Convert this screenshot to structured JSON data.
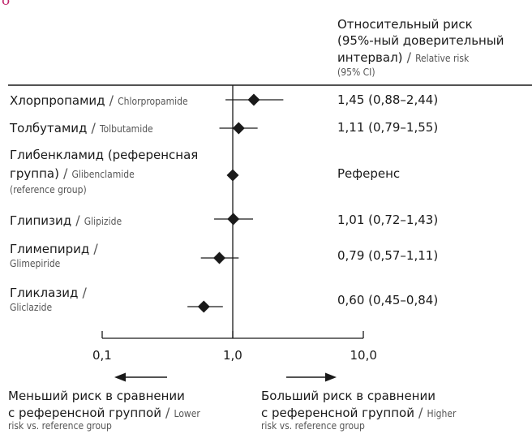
{
  "top_fragment": "ȯ",
  "column_header": {
    "ru_lines": [
      "Относительный риск",
      "(95%-ный доверительный",
      "интервал)"
    ],
    "separator": " / ",
    "en_line1": "Relative risk",
    "en_line2": "(95% CI)"
  },
  "rows": [
    {
      "ru": "Хлорпропамид",
      "en": "Chlorpropamide",
      "estimate": "1,45 (0,88–2,44)"
    },
    {
      "ru": "Толбутамид",
      "en": "Tolbutamide",
      "estimate": "1,11 (0,79–1,55)"
    },
    {
      "ru_line1": "Глибенкламид (референсная",
      "ru_line2": "группа)",
      "en_line1": "Glibenclamide",
      "en_line2": "(reference group)",
      "estimate": "Референс"
    },
    {
      "ru": "Глипизид",
      "en": "Glipizide",
      "estimate": "1,01 (0,72–1,43)"
    },
    {
      "ru": "Глимепирид",
      "en": "Glimepiride",
      "estimate": "0,79 (0,57–1,11)"
    },
    {
      "ru": "Гликлазид",
      "en": "Gliclazide",
      "estimate": "0,60 (0,45–0,84)"
    }
  ],
  "axis_ticks": [
    "0,1",
    "1,0",
    "10,0"
  ],
  "footer": {
    "left": {
      "ru_line1": "Меньший риск в сравнении",
      "ru_line2": "с референсной группой",
      "en_line2": "Lower",
      "en_line3": "risk vs. reference group"
    },
    "right": {
      "ru_line1": "Больший риск в сравнении",
      "ru_line2": "с референсной группой",
      "en_line2": "Higher",
      "en_line3": "risk vs. reference group"
    }
  },
  "chart_data": {
    "type": "forest",
    "x_scale": "log",
    "xlim": [
      0.1,
      10
    ],
    "x_ticks": [
      0.1,
      1.0,
      10.0
    ],
    "reference_line": 1.0,
    "points": [
      {
        "category": "Chlorpropamide",
        "estimate": 1.45,
        "ci_low": 0.88,
        "ci_high": 2.44
      },
      {
        "category": "Tolbutamide",
        "estimate": 1.11,
        "ci_low": 0.79,
        "ci_high": 1.55
      },
      {
        "category": "Glibenclamide",
        "estimate": 1.0,
        "ci_low": null,
        "ci_high": null
      },
      {
        "category": "Glipizide",
        "estimate": 1.01,
        "ci_low": 0.72,
        "ci_high": 1.43
      },
      {
        "category": "Glimepiride",
        "estimate": 0.79,
        "ci_low": 0.57,
        "ci_high": 1.11
      },
      {
        "category": "Gliclazide",
        "estimate": 0.6,
        "ci_low": 0.45,
        "ci_high": 0.84
      }
    ],
    "colors": {
      "marker": "#1a1a1a",
      "line": "#1a1a1a"
    }
  }
}
